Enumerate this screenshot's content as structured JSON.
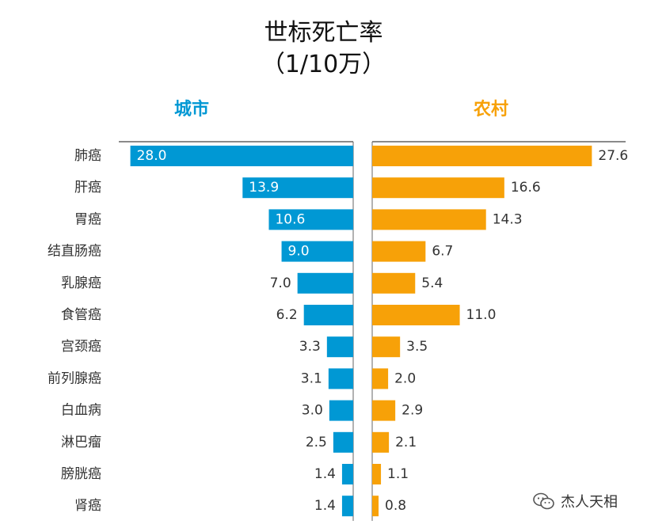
{
  "chart_data": {
    "type": "bar",
    "title": "世标死亡率",
    "subtitle": "（1/10万）",
    "categories": [
      "肺癌",
      "肝癌",
      "胃癌",
      "结直肠癌",
      "乳腺癌",
      "食管癌",
      "宫颈癌",
      "前列腺癌",
      "白血病",
      "淋巴瘤",
      "膀胱癌",
      "肾癌"
    ],
    "series": [
      {
        "name": "城市",
        "color": "#0098d4",
        "values": [
          28.0,
          13.9,
          10.6,
          9.0,
          7.0,
          6.2,
          3.3,
          3.1,
          3.0,
          2.5,
          1.4,
          1.4
        ]
      },
      {
        "name": "农村",
        "color": "#f7a108",
        "values": [
          27.6,
          16.6,
          14.3,
          6.7,
          5.4,
          11.0,
          3.5,
          2.0,
          2.9,
          2.1,
          1.1,
          0.8
        ]
      }
    ],
    "xlim": [
      0,
      28
    ],
    "grid": false,
    "legend": "top"
  },
  "watermark": "杰人天相"
}
